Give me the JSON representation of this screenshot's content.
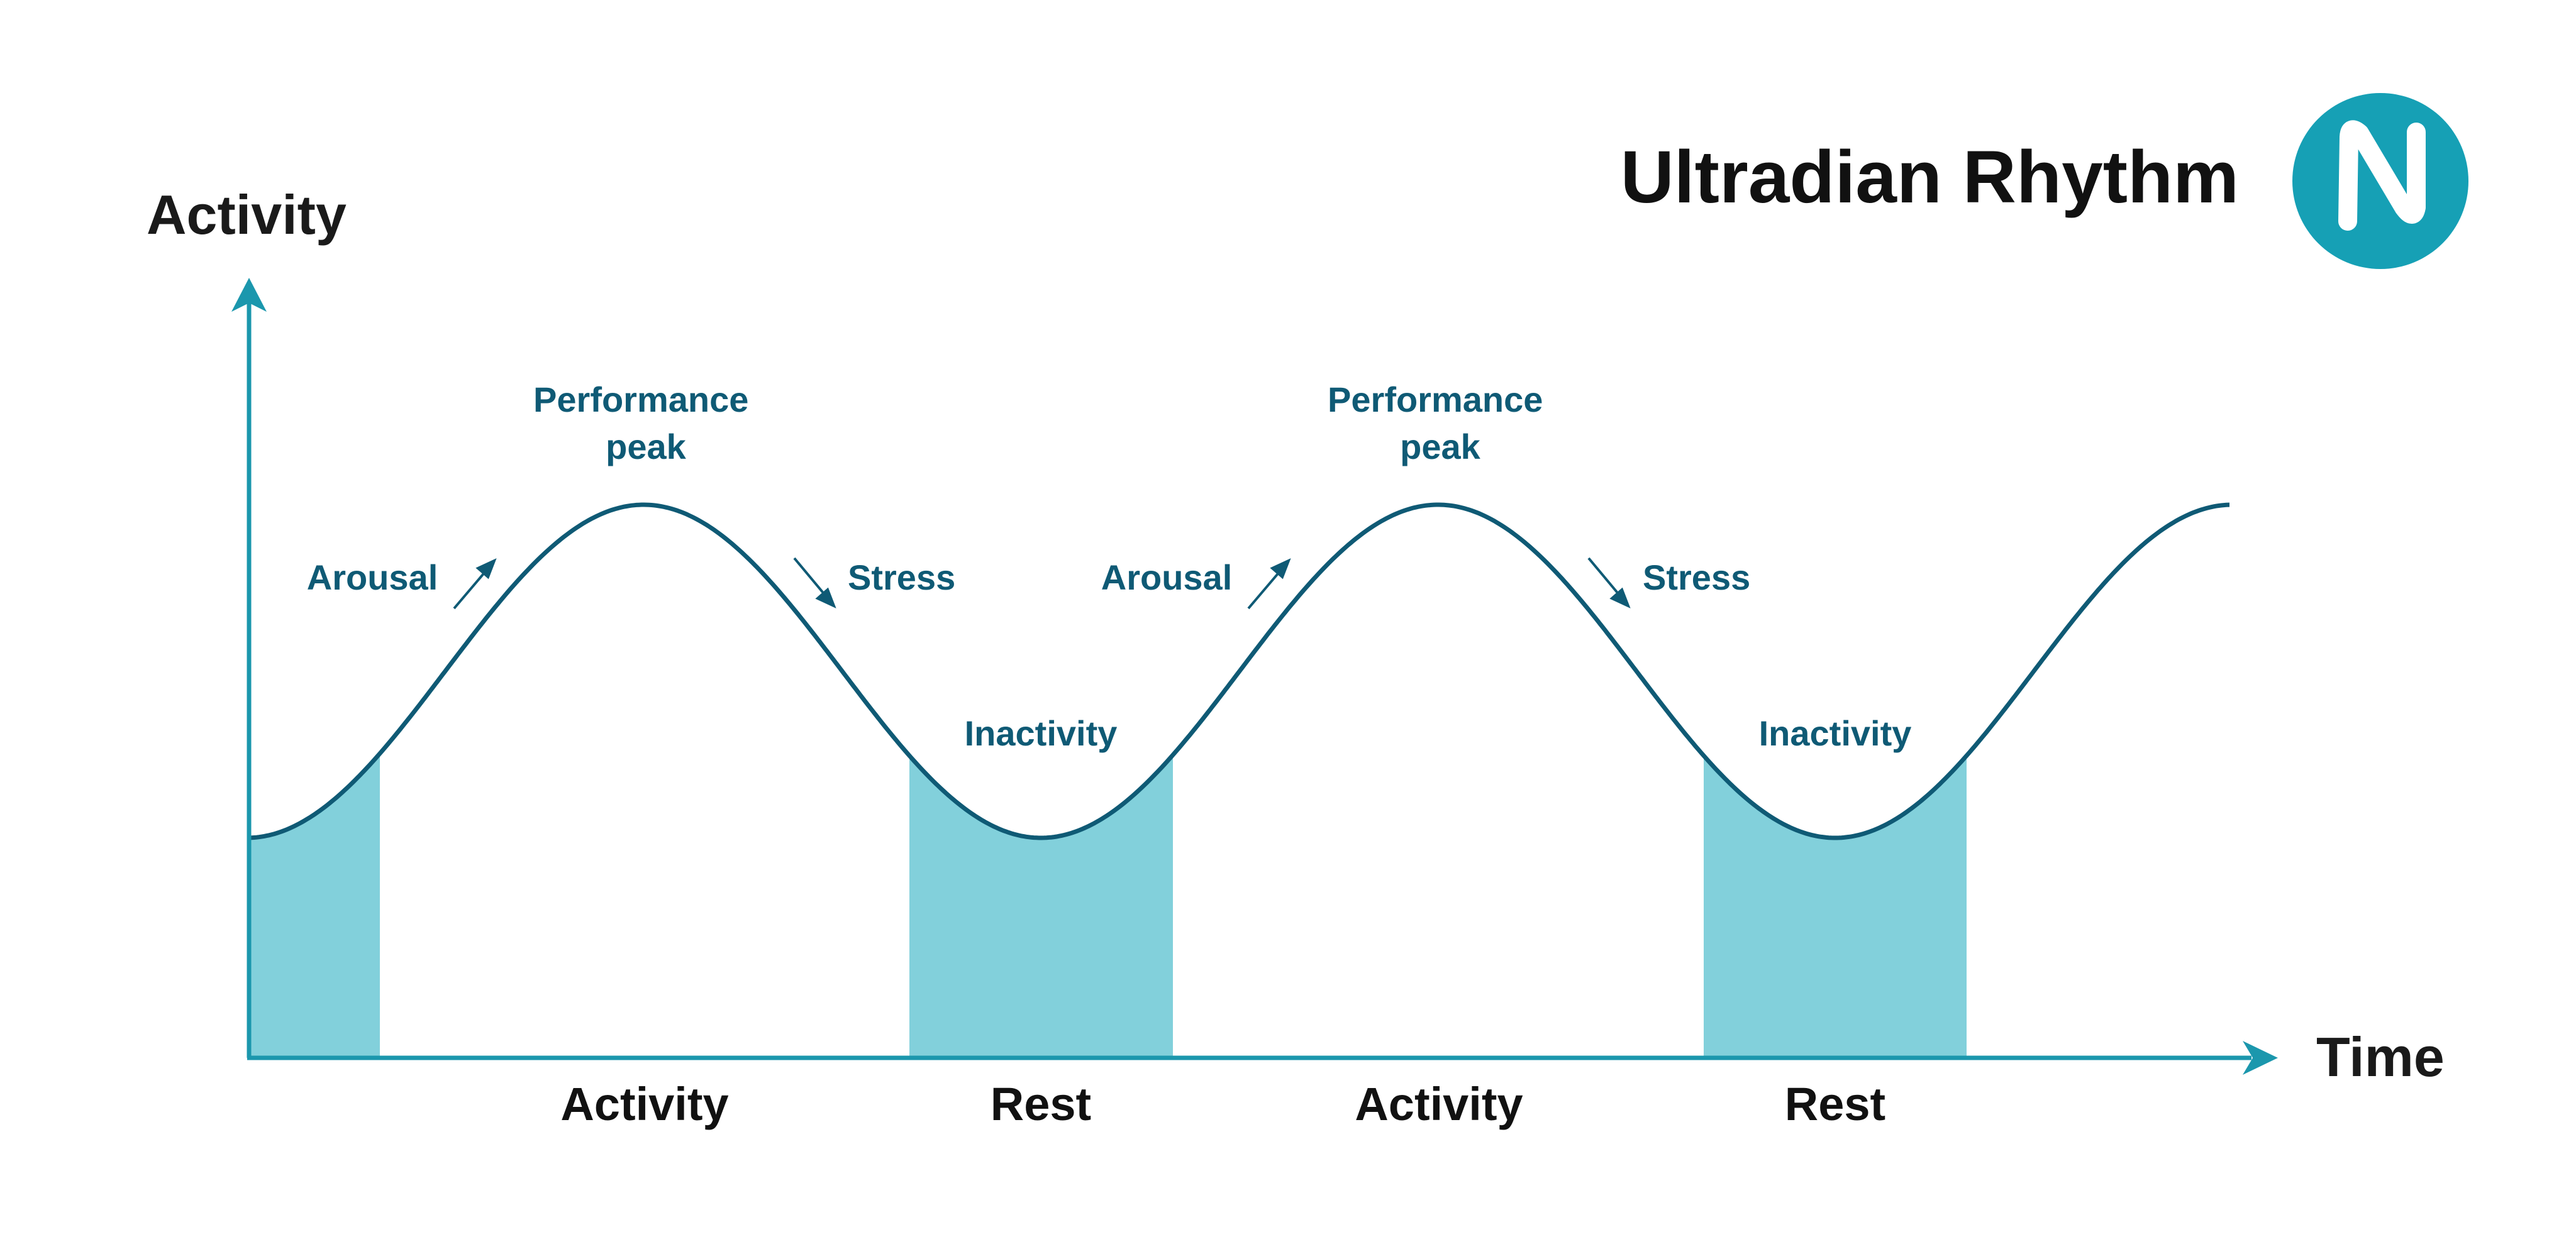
{
  "title": "Ultradian Rhythm",
  "logo_letter": "N",
  "axes": {
    "y_label": "Activity",
    "x_label": "Time"
  },
  "phases": [
    {
      "label": "Activity"
    },
    {
      "label": "Rest"
    },
    {
      "label": "Activity"
    },
    {
      "label": "Rest"
    }
  ],
  "annotations": {
    "arousal": "Arousal",
    "peak_line1": "Performance",
    "peak_line2": "peak",
    "stress": "Stress",
    "inactivity": "Inactivity"
  },
  "icons": [
    "arrow-up-right-icon",
    "arrow-down-right-icon",
    "logo-n-icon"
  ],
  "colors": {
    "curve": "#0f5a75",
    "axis": "#1b97ad",
    "shade": "#82d0db",
    "logo_bg": "#16a0b5",
    "annotation": "#0f5a75",
    "title": "#111111"
  }
}
